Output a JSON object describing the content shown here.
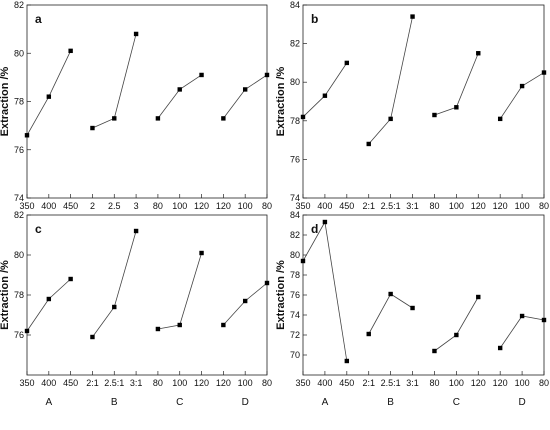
{
  "chart_data": [
    {
      "panel": "a",
      "type": "line",
      "ylabel": "Extraction /%",
      "ylim": [
        74,
        82
      ],
      "yticks": [
        74,
        76,
        78,
        80,
        82
      ],
      "x_tick_labels": [
        "350",
        "400",
        "450",
        "2",
        "2.5",
        "3",
        "80",
        "100",
        "120",
        "120",
        "100",
        "80"
      ],
      "category_labels": [],
      "series": [
        {
          "x": [
            "350",
            "400",
            "450"
          ],
          "values": [
            76.6,
            78.2,
            80.1
          ]
        },
        {
          "x": [
            "2",
            "2.5",
            "3"
          ],
          "values": [
            76.9,
            77.3,
            80.8
          ]
        },
        {
          "x": [
            "80",
            "100",
            "120"
          ],
          "values": [
            77.3,
            78.5,
            79.1
          ]
        },
        {
          "x": [
            "120",
            "100",
            "80"
          ],
          "values": [
            77.3,
            78.5,
            79.1
          ]
        }
      ]
    },
    {
      "panel": "b",
      "type": "line",
      "ylabel": "Extraction /%",
      "ylim": [
        74,
        84
      ],
      "yticks": [
        74,
        76,
        78,
        80,
        82,
        84
      ],
      "x_tick_labels": [
        "350",
        "400",
        "450",
        "2:1",
        "2.5:1",
        "3:1",
        "80",
        "100",
        "120",
        "120",
        "100",
        "80"
      ],
      "category_labels": [],
      "series": [
        {
          "x": [
            "350",
            "400",
            "450"
          ],
          "values": [
            78.2,
            79.3,
            81.0
          ]
        },
        {
          "x": [
            "2:1",
            "2.5:1",
            "3:1"
          ],
          "values": [
            76.8,
            78.1,
            83.4
          ]
        },
        {
          "x": [
            "80",
            "100",
            "120"
          ],
          "values": [
            78.3,
            78.7,
            81.5
          ]
        },
        {
          "x": [
            "120",
            "100",
            "80"
          ],
          "values": [
            78.1,
            79.8,
            80.5
          ]
        }
      ]
    },
    {
      "panel": "c",
      "type": "line",
      "ylabel": "Extraction /%",
      "ylim": [
        74,
        82
      ],
      "yticks": [
        76,
        78,
        80,
        82
      ],
      "x_tick_labels": [
        "350",
        "400",
        "450",
        "2:1",
        "2.5:1",
        "3:1",
        "80",
        "100",
        "120",
        "120",
        "100",
        "80"
      ],
      "category_labels": [
        "A",
        "B",
        "C",
        "D"
      ],
      "series": [
        {
          "x": [
            "350",
            "400",
            "450"
          ],
          "values": [
            76.2,
            77.8,
            78.8
          ]
        },
        {
          "x": [
            "2:1",
            "2.5:1",
            "3:1"
          ],
          "values": [
            75.9,
            77.4,
            81.2
          ]
        },
        {
          "x": [
            "80",
            "100",
            "120"
          ],
          "values": [
            76.3,
            76.5,
            80.1
          ]
        },
        {
          "x": [
            "120",
            "100",
            "80"
          ],
          "values": [
            76.5,
            77.7,
            78.6
          ]
        }
      ]
    },
    {
      "panel": "d",
      "type": "line",
      "ylabel": "Extraction /%",
      "ylim": [
        68,
        84
      ],
      "yticks": [
        70,
        72,
        74,
        76,
        78,
        80,
        82,
        84
      ],
      "x_tick_labels": [
        "350",
        "400",
        "450",
        "2:1",
        "2.5:1",
        "3:1",
        "80",
        "100",
        "120",
        "120",
        "100",
        "80"
      ],
      "category_labels": [
        "A",
        "B",
        "C",
        "D"
      ],
      "series": [
        {
          "x": [
            "350",
            "400",
            "450"
          ],
          "values": [
            79.4,
            83.3,
            69.4
          ]
        },
        {
          "x": [
            "2:1",
            "2.5:1",
            "3:1"
          ],
          "values": [
            72.1,
            76.1,
            74.7
          ]
        },
        {
          "x": [
            "80",
            "100",
            "120"
          ],
          "values": [
            70.4,
            72.0,
            75.8
          ]
        },
        {
          "x": [
            "120",
            "100",
            "80"
          ],
          "values": [
            70.7,
            73.9,
            73.5
          ]
        }
      ]
    }
  ]
}
